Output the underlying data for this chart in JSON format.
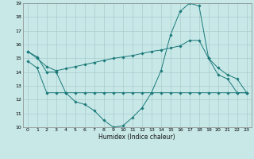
{
  "xlabel": "Humidex (Indice chaleur)",
  "xlim": [
    -0.5,
    23.5
  ],
  "ylim": [
    10,
    19
  ],
  "yticks": [
    10,
    11,
    12,
    13,
    14,
    15,
    16,
    17,
    18,
    19
  ],
  "xticks": [
    0,
    1,
    2,
    3,
    4,
    5,
    6,
    7,
    8,
    9,
    10,
    11,
    12,
    13,
    14,
    15,
    16,
    17,
    18,
    19,
    20,
    21,
    22,
    23
  ],
  "background_color": "#c8e8e8",
  "grid_color": "#a8cccc",
  "line_color": "#1a7878",
  "line1_x": [
    0,
    1,
    2,
    3,
    4,
    5,
    6,
    7,
    8,
    9,
    10,
    11,
    12,
    13,
    14,
    15,
    16,
    17,
    18,
    19,
    20,
    21,
    22,
    23
  ],
  "line1_y": [
    15.5,
    15.1,
    14.0,
    14.0,
    12.5,
    11.85,
    11.65,
    11.2,
    10.5,
    10.0,
    10.1,
    10.7,
    11.4,
    12.5,
    14.1,
    16.7,
    18.4,
    19.0,
    18.8,
    15.0,
    13.8,
    13.5,
    12.5,
    12.5
  ],
  "line2_x": [
    0,
    1,
    2,
    3,
    4,
    5,
    6,
    7,
    8,
    9,
    10,
    11,
    12,
    13,
    14,
    15,
    16,
    17,
    18,
    19,
    20,
    21,
    22,
    23
  ],
  "line2_y": [
    15.5,
    15.0,
    14.4,
    14.1,
    14.25,
    14.4,
    14.55,
    14.7,
    14.85,
    15.0,
    15.1,
    15.2,
    15.35,
    15.5,
    15.6,
    15.75,
    15.9,
    16.3,
    16.3,
    15.0,
    14.3,
    13.8,
    13.5,
    12.5
  ],
  "line3_x": [
    0,
    1,
    2,
    3,
    4,
    5,
    6,
    7,
    8,
    9,
    10,
    11,
    12,
    13,
    14,
    15,
    16,
    17,
    18,
    19,
    20,
    21,
    22,
    23
  ],
  "line3_y": [
    14.8,
    14.3,
    12.5,
    12.5,
    12.5,
    12.5,
    12.5,
    12.5,
    12.5,
    12.5,
    12.5,
    12.5,
    12.5,
    12.5,
    12.5,
    12.5,
    12.5,
    12.5,
    12.5,
    12.5,
    12.5,
    12.5,
    12.5,
    12.5
  ]
}
